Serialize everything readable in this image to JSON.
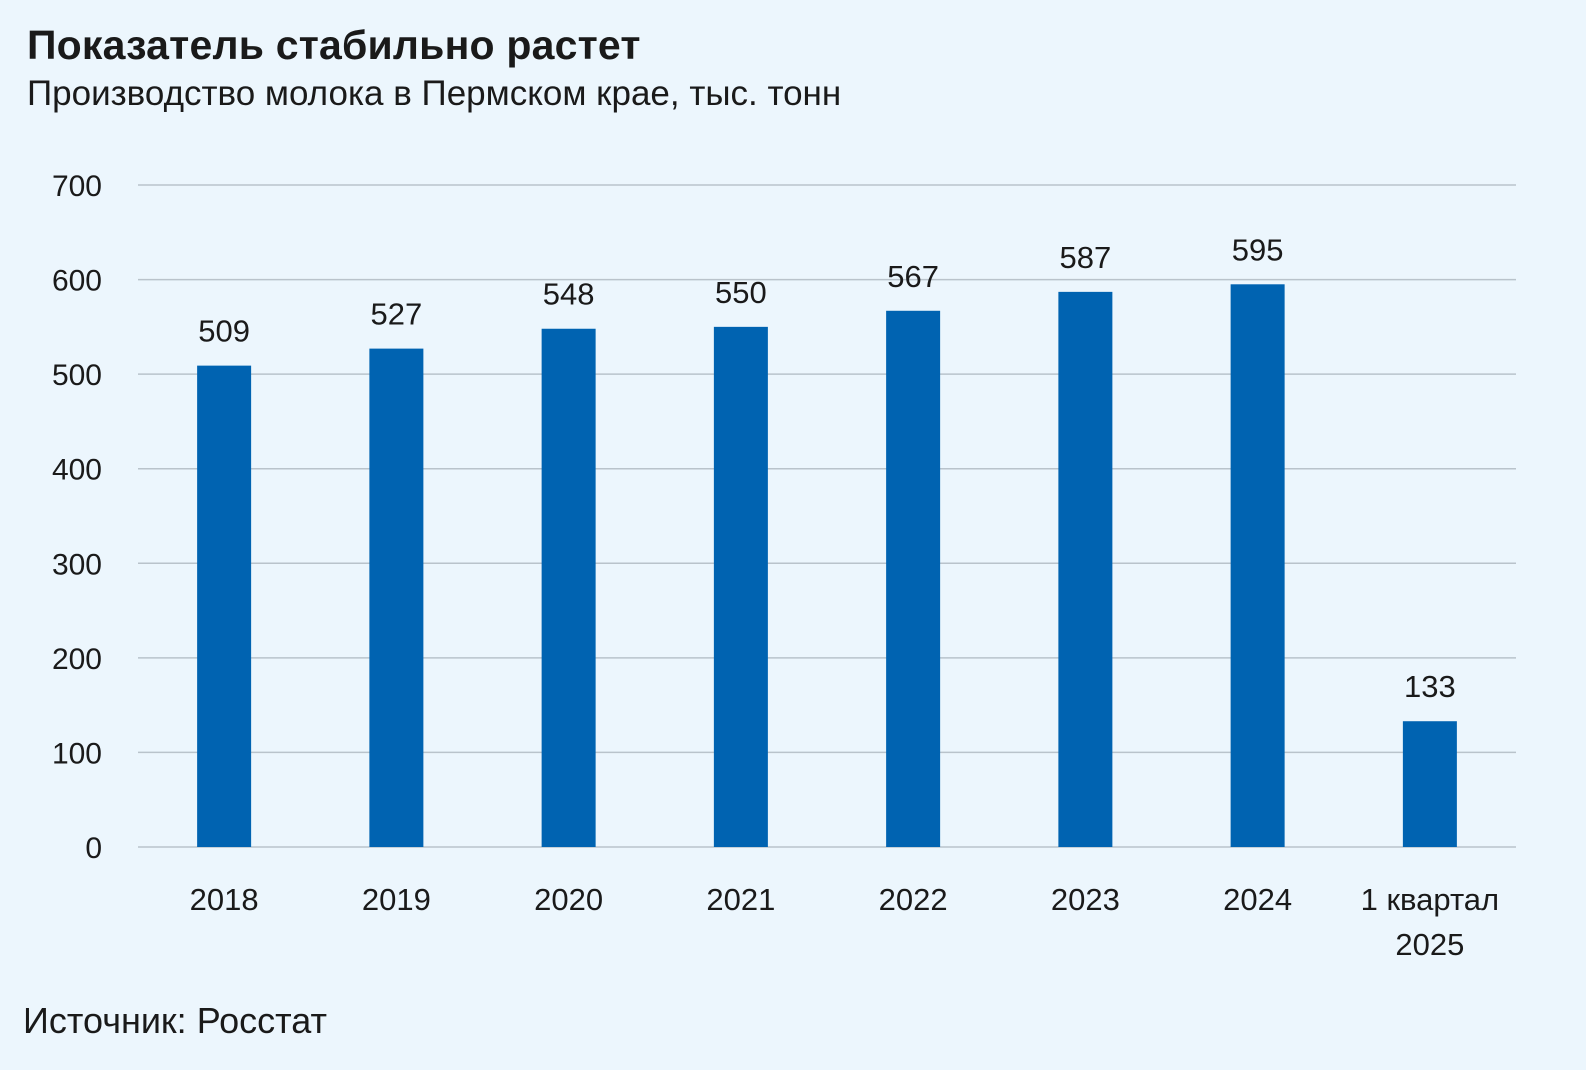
{
  "header": {
    "title": "Показатель стабильно растет",
    "subtitle": "Производство молока в Пермском крае, тыс. тонн"
  },
  "footer": {
    "source": "Источник: Росстат"
  },
  "colors": {
    "bar": "#0063b1",
    "grid": "#b9c3cb",
    "background": "#ecf6fd"
  },
  "chart_data": {
    "type": "bar",
    "title": "Показатель стабильно растет",
    "subtitle": "Производство молока в Пермском крае, тыс. тонн",
    "categories": [
      "2018",
      "2019",
      "2020",
      "2021",
      "2022",
      "2023",
      "2024",
      "1 квартал 2025"
    ],
    "category_lines": [
      [
        "2018"
      ],
      [
        "2019"
      ],
      [
        "2020"
      ],
      [
        "2021"
      ],
      [
        "2022"
      ],
      [
        "2023"
      ],
      [
        "2024"
      ],
      [
        "1 квартал",
        "2025"
      ]
    ],
    "values": [
      509,
      527,
      548,
      550,
      567,
      587,
      595,
      133
    ],
    "data_labels": [
      "509",
      "527",
      "548",
      "550",
      "567",
      "587",
      "595",
      "133"
    ],
    "ylim": [
      0,
      700
    ],
    "yticks": [
      0,
      100,
      200,
      300,
      400,
      500,
      600,
      700
    ],
    "grid": true,
    "legend": "none"
  }
}
